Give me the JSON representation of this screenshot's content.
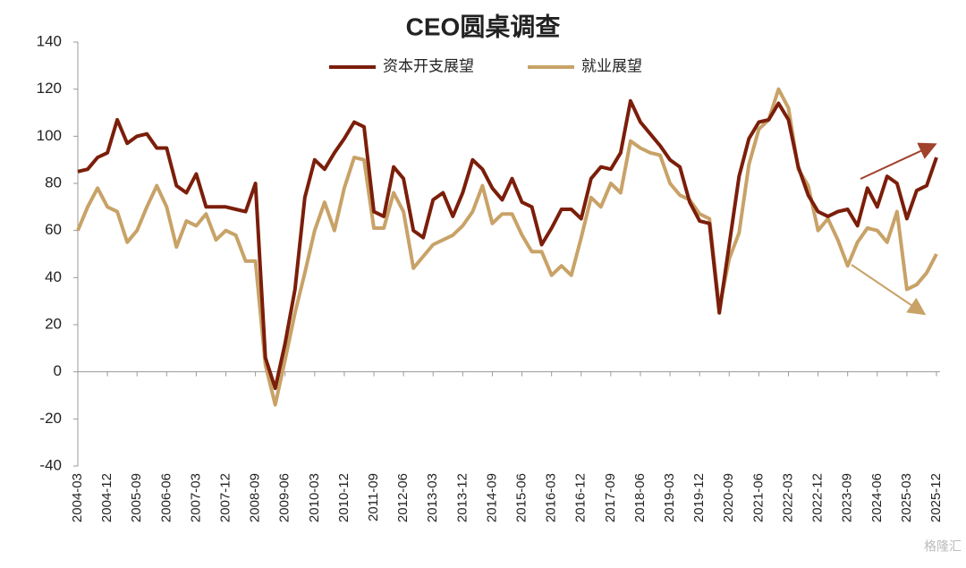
{
  "chart_data": {
    "type": "line",
    "title": "CEO圆桌调查",
    "categories": [
      "2004-03",
      null,
      null,
      "2004-12",
      null,
      null,
      "2005-09",
      null,
      null,
      "2006-06",
      null,
      null,
      "2007-03",
      null,
      null,
      "2007-12",
      null,
      null,
      "2008-09",
      null,
      null,
      "2009-06",
      null,
      null,
      "2010-03",
      null,
      null,
      "2010-12",
      null,
      null,
      "2011-09",
      null,
      null,
      "2012-06",
      null,
      null,
      "2013-03",
      null,
      null,
      "2013-12",
      null,
      null,
      "2014-09",
      null,
      null,
      "2015-06",
      null,
      null,
      "2016-03",
      null,
      null,
      "2016-12",
      null,
      null,
      "2017-09",
      null,
      null,
      "2018-06",
      null,
      null,
      "2019-03",
      null,
      null,
      "2019-12",
      null,
      null,
      "2020-09",
      null,
      null,
      "2021-06",
      null,
      null,
      "2022-03",
      null,
      null,
      "2022-12",
      null,
      null,
      "2023-09",
      null,
      null,
      "2024-06",
      null,
      null,
      "2025-03",
      null,
      null,
      "2025-12"
    ],
    "series": [
      {
        "name": "资本开支展望",
        "color": "#7b1e0a",
        "values": [
          85,
          86,
          91,
          93,
          107,
          97,
          100,
          101,
          95,
          95,
          79,
          76,
          84,
          70,
          70,
          70,
          69,
          68,
          80,
          6,
          -7,
          12,
          35,
          74,
          90,
          86,
          93,
          99,
          106,
          104,
          68,
          66,
          87,
          82,
          60,
          57,
          73,
          76,
          66,
          76,
          90,
          86,
          78,
          73,
          82,
          72,
          70,
          54,
          61,
          69,
          69,
          65,
          82,
          87,
          86,
          93,
          115,
          106,
          101,
          96,
          90,
          87,
          72,
          64,
          63,
          25,
          54,
          83,
          99,
          106,
          107,
          114,
          107,
          87,
          75,
          68,
          66,
          68,
          69,
          62,
          78,
          70,
          83,
          80,
          65,
          77,
          79,
          91
        ]
      },
      {
        "name": "就业展望",
        "color": "#c8a267",
        "values": [
          60,
          70,
          78,
          70,
          68,
          55,
          60,
          70,
          79,
          70,
          53,
          64,
          62,
          67,
          56,
          60,
          58,
          47,
          47,
          3,
          -14,
          5,
          25,
          42,
          60,
          72,
          60,
          78,
          91,
          90,
          61,
          61,
          76,
          68,
          44,
          49,
          54,
          56,
          58,
          62,
          68,
          79,
          63,
          67,
          67,
          58,
          51,
          51,
          41,
          45,
          41,
          57,
          74,
          70,
          80,
          76,
          98,
          95,
          93,
          92,
          80,
          75,
          73,
          67,
          65,
          27,
          48,
          59,
          88,
          103,
          107,
          120,
          112,
          86,
          79,
          60,
          65,
          56,
          45,
          55,
          61,
          60,
          55,
          68,
          35,
          37,
          42,
          50
        ]
      }
    ],
    "ylim": [
      -40,
      140
    ],
    "yticks": [
      -40,
      -20,
      0,
      20,
      40,
      60,
      80,
      100,
      120,
      140
    ],
    "legend": "top",
    "watermark": "格隆汇"
  }
}
